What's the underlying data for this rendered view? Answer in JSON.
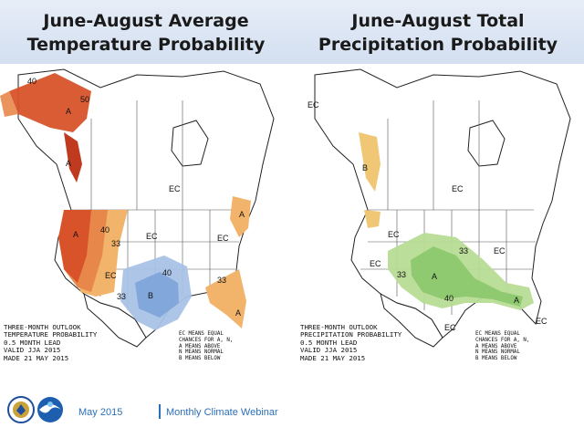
{
  "header": {
    "left_title_line1": "June-August Average",
    "left_title_line2": "Temperature Probability",
    "right_title_line1": "June-August Total",
    "right_title_line2": "Precipitation Probability"
  },
  "temperature_map": {
    "caption_lines": [
      "THREE-MONTH OUTLOOK",
      "TEMPERATURE PROBABILITY",
      "0.5 MONTH LEAD",
      "VALID JJA 2015",
      "MADE 21 MAY 2015"
    ],
    "legend_lines": [
      "EC MEANS EQUAL",
      "CHANCES FOR A, N,",
      "A MEANS ABOVE",
      "N MEANS NORMAL",
      "B MEANS BELOW"
    ],
    "labels": {
      "alaska_a": "A",
      "alaska_50": "50",
      "alaska_40": "40",
      "panhandle_a": "A",
      "west_a": "A",
      "west_40": "40",
      "west_33": "33",
      "ec_north": "EC",
      "ec_central": "EC",
      "ec_southwest": "EC",
      "ec_east": "EC",
      "texas_b": "B",
      "texas_33": "33",
      "texas_40": "40",
      "northeast_a": "A",
      "florida_a": "A",
      "florida_33": "33"
    },
    "colors": {
      "above_33": "#f2b36a",
      "above_40": "#e8874a",
      "above_50": "#d8532a",
      "above_60": "#c03a1f",
      "below_33": "#a9c2e6",
      "below_40": "#7da3d8"
    }
  },
  "precipitation_map": {
    "caption_lines": [
      "THREE-MONTH OUTLOOK",
      "PRECIPITATION PROBABILITY",
      "0.5 MONTH LEAD",
      "VALID JJA 2015",
      "MADE 21 MAY 2015"
    ],
    "legend_lines": [
      "EC MEANS EQUAL",
      "CHANCES FOR A, N,",
      "A MEANS ABOVE",
      "N MEANS NORMAL",
      "B MEANS BELOW"
    ],
    "labels": {
      "ec_alaska": "EC",
      "ec_north": "EC",
      "ec_west": "EC",
      "ec_central": "EC",
      "ec_east": "EC",
      "ec_southwest": "EC",
      "panhandle_b": "B",
      "central_a": "A",
      "central_33": "33",
      "central_40": "40",
      "central_33b": "33",
      "southeast_a": "A",
      "florida_ec": "EC"
    },
    "colors": {
      "above_33": "#b7dc95",
      "above_40": "#8cc86c",
      "below_33": "#f0c775"
    }
  },
  "footer": {
    "date": "May 2015",
    "webinar": "Monthly Climate Webinar"
  }
}
